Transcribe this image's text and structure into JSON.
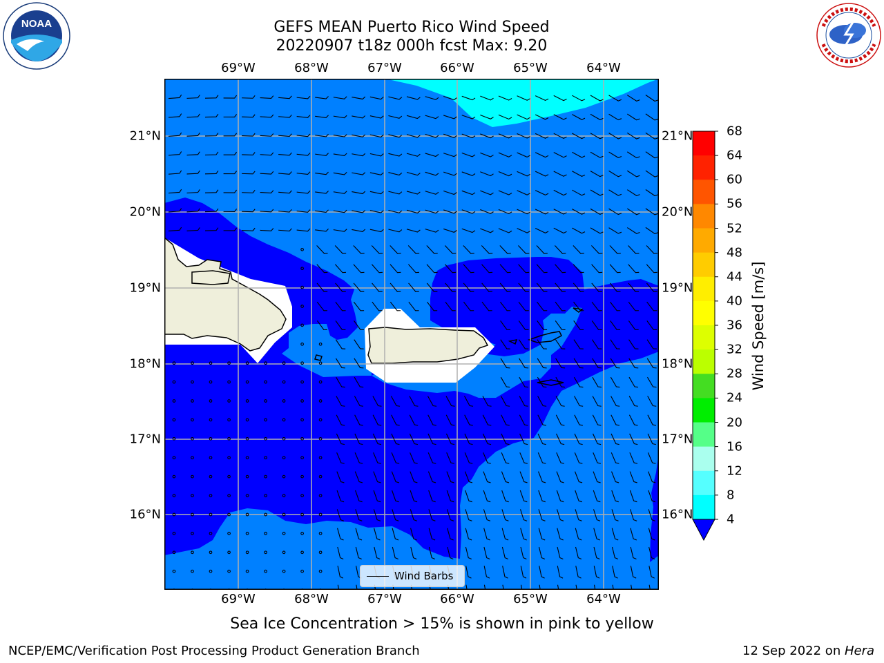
{
  "title": {
    "line1": "GEFS MEAN Puerto Rico Wind Speed",
    "line2": "20220907 t18z 000h fcst   Max: 9.20"
  },
  "longitude_labels": [
    "69°W",
    "68°W",
    "67°W",
    "66°W",
    "65°W",
    "64°W"
  ],
  "latitude_labels": [
    "21°N",
    "20°N",
    "19°N",
    "18°N",
    "17°N",
    "16°N"
  ],
  "legend": {
    "label": "Wind Barbs"
  },
  "colorbar": {
    "label": "Wind Speed [m/s]",
    "ticks": [
      "68",
      "64",
      "60",
      "56",
      "52",
      "48",
      "44",
      "40",
      "36",
      "32",
      "28",
      "24",
      "20",
      "16",
      "12",
      "8",
      "4"
    ],
    "colors": [
      "#ff0000",
      "#ff2200",
      "#ff5500",
      "#ff8800",
      "#ffaa00",
      "#ffcc00",
      "#ffee00",
      "#ffff00",
      "#ddff00",
      "#bbff00",
      "#44dd22",
      "#00ee00",
      "#55ff88",
      "#aaffee",
      "#55ffff",
      "#00ffff",
      "#0088ff"
    ],
    "extend_color": "#0000ff"
  },
  "map": {
    "colors": {
      "speed_0_4": "#0000ff",
      "speed_4_8": "#0080ff",
      "speed_8_12": "#00ffff",
      "land": "#efefdb",
      "coast": "#000000",
      "grid": "#b0b0b0"
    }
  },
  "logos": {
    "left": {
      "name": "NOAA",
      "text": "NOAA"
    },
    "right": {
      "name": "National Weather Service"
    }
  },
  "footer": {
    "subtitle": "Sea Ice Concentration > 15% is shown in pink to yellow",
    "left": "NCEP/EMC/Verification Post Processing Product Generation Branch",
    "date": "12 Sep 2022 on ",
    "machine": "Hera"
  }
}
